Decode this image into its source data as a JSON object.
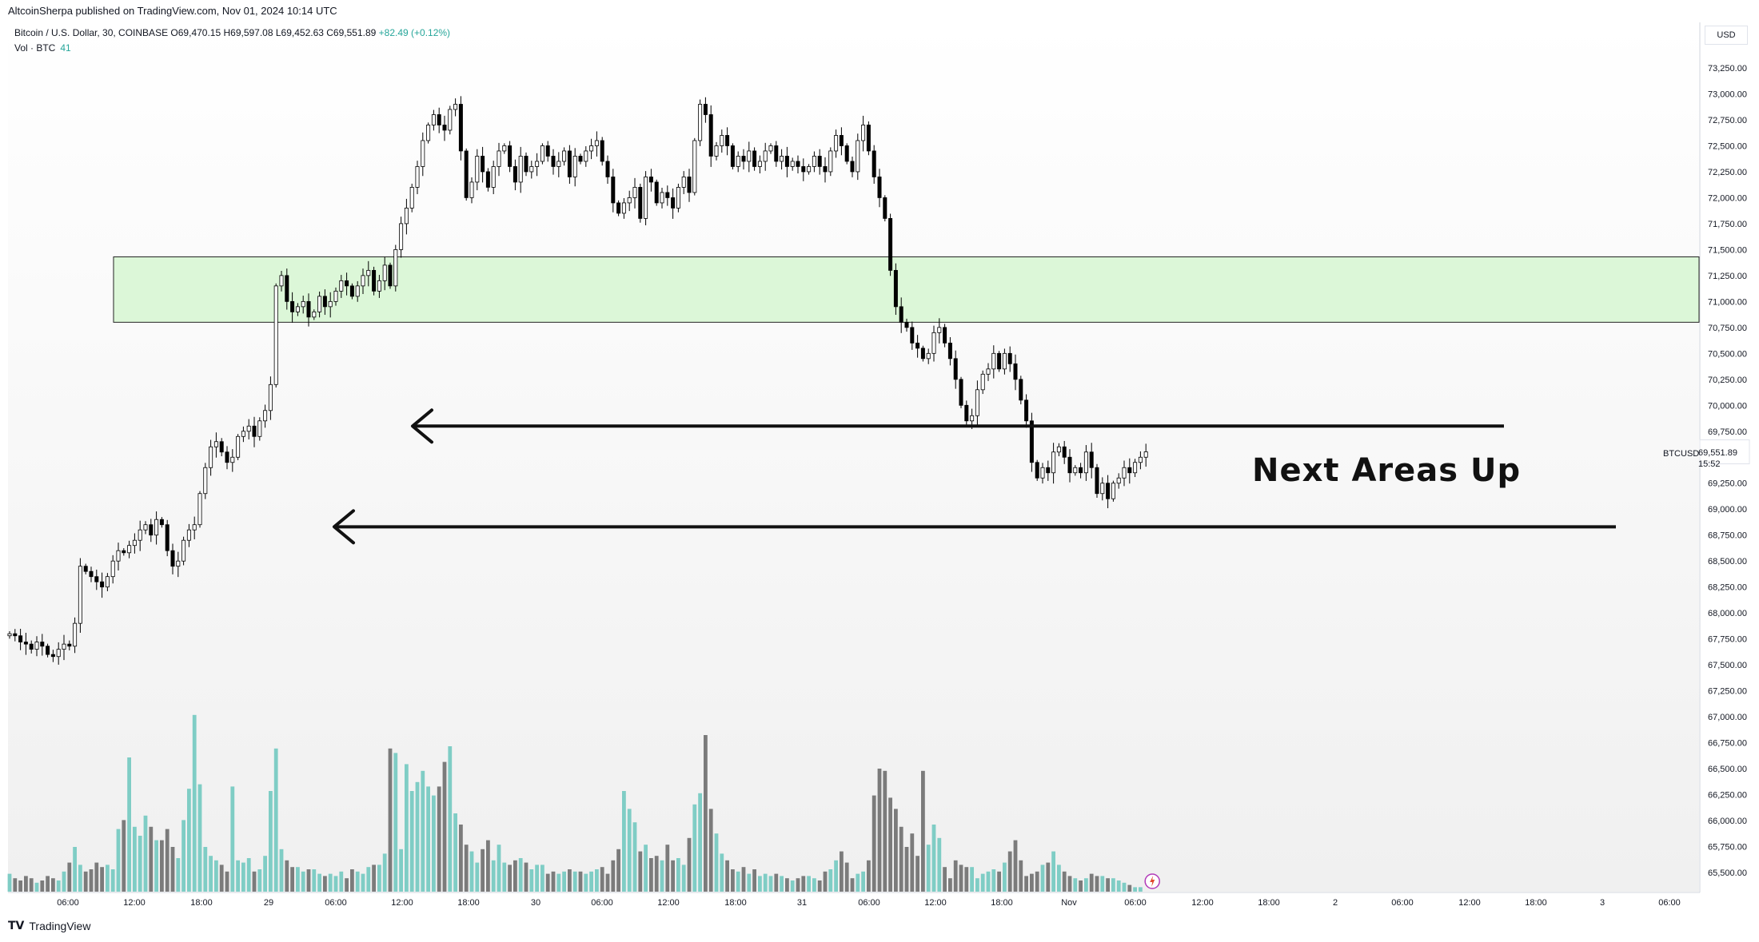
{
  "header": {
    "publish_info": "AltcoinSherpa published on TradingView.com, Nov 01, 2024 10:14 UTC",
    "symbol_desc": "Bitcoin / U.S. Dollar, 30, COINBASE",
    "ohlc": "O69,470.15  H69,597.08  L69,452.63  C69,551.89",
    "change": "+82.49 (+0.12%)",
    "vol_label": "Vol · BTC",
    "vol_value": "41"
  },
  "price_scale": {
    "currency": "USD",
    "ticker_tag": "BTCUSD",
    "last_price": "69,551.89",
    "countdown": "15:52"
  },
  "annotation": {
    "text": "Next Areas Up"
  },
  "footer": {
    "logo": "TV",
    "brand": "TradingView"
  },
  "colors": {
    "up_candle_fill": "#ffffff",
    "candle_outline": "#000000",
    "down_candle_fill": "#000000",
    "up_volume": "#7fcdc5",
    "down_volume": "#7b7b7b",
    "zone_fill": "#dcf7d8",
    "zone_border": "#222222"
  },
  "chart_data": {
    "type": "candlestick",
    "timeframe": "30m",
    "x_axis_labels": [
      "06:00",
      "12:00",
      "18:00",
      "29",
      "06:00",
      "12:00",
      "18:00",
      "30",
      "06:00",
      "12:00",
      "18:00",
      "31",
      "06:00",
      "12:00",
      "18:00",
      "Nov",
      "06:00",
      "12:00",
      "18:00",
      "2",
      "06:00",
      "12:00",
      "18:00",
      "3",
      "06:00"
    ],
    "y_axis_labels": [
      "73,250.00",
      "73,000.00",
      "72,750.00",
      "72,500.00",
      "72,250.00",
      "72,000.00",
      "71,750.00",
      "71,500.00",
      "71,250.00",
      "71,000.00",
      "70,750.00",
      "70,500.00",
      "70,250.00",
      "70,000.00",
      "69,750.00",
      "69,500.00",
      "69,250.00",
      "69,000.00",
      "68,750.00",
      "68,500.00",
      "68,250.00",
      "68,000.00",
      "67,750.00",
      "67,500.00",
      "67,250.00",
      "67,000.00",
      "66,750.00",
      "66,500.00",
      "66,250.00",
      "66,000.00",
      "65,750.00",
      "65,500.00"
    ],
    "ylim": [
      65400,
      73500
    ],
    "closes": [
      67800,
      67780,
      67720,
      67700,
      67650,
      67720,
      67680,
      67600,
      67580,
      67650,
      67700,
      67680,
      67900,
      68450,
      68400,
      68350,
      68300,
      68250,
      68350,
      68500,
      68600,
      68580,
      68650,
      68700,
      68800,
      68850,
      68750,
      68900,
      68850,
      68600,
      68450,
      68500,
      68700,
      68800,
      68850,
      69150,
      69400,
      69600,
      69650,
      69550,
      69450,
      69500,
      69700,
      69750,
      69800,
      69700,
      69850,
      69950,
      70200,
      71150,
      71250,
      71000,
      70900,
      70950,
      71000,
      70850,
      70900,
      71050,
      70950,
      71000,
      71100,
      71200,
      71150,
      71050,
      71150,
      71250,
      71300,
      71100,
      71200,
      71350,
      71150,
      71500,
      71750,
      71900,
      72100,
      72300,
      72550,
      72700,
      72800,
      72700,
      72650,
      72850,
      72900,
      72450,
      72000,
      72150,
      72400,
      72250,
      72100,
      72300,
      72450,
      72500,
      72300,
      72150,
      72400,
      72250,
      72300,
      72350,
      72500,
      72400,
      72300,
      72350,
      72450,
      72200,
      72400,
      72350,
      72450,
      72500,
      72550,
      72350,
      72200,
      71950,
      71850,
      71950,
      72000,
      72100,
      71800,
      72200,
      72150,
      71950,
      72050,
      72000,
      71900,
      72100,
      72200,
      72050,
      72550,
      72900,
      72800,
      72400,
      72500,
      72600,
      72500,
      72300,
      72400,
      72350,
      72450,
      72300,
      72350,
      72450,
      72500,
      72350,
      72400,
      72300,
      72350,
      72300,
      72250,
      72300,
      72400,
      72300,
      72250,
      72450,
      72600,
      72500,
      72350,
      72250,
      72550,
      72700,
      72450,
      72200,
      72000,
      71800,
      71300,
      70950,
      70800,
      70750,
      70600,
      70550,
      70450,
      70500,
      70700,
      70750,
      70600,
      70450,
      70250,
      70000,
      69850,
      69900,
      70150,
      70300,
      70350,
      70500,
      70350,
      70500,
      70400,
      70250,
      70050,
      69850,
      69450,
      69300,
      69400,
      69350,
      69550,
      69600,
      69500,
      69350,
      69400,
      69350,
      69550,
      69400,
      69150,
      69250,
      69100,
      69250,
      69300,
      69400,
      69350,
      69450,
      69500,
      69551.89
    ],
    "volume_relative": [
      0.08,
      0.06,
      0.05,
      0.07,
      0.06,
      0.04,
      0.05,
      0.07,
      0.06,
      0.05,
      0.09,
      0.13,
      0.2,
      0.12,
      0.09,
      0.1,
      0.13,
      0.11,
      0.12,
      0.1,
      0.28,
      0.32,
      0.6,
      0.29,
      0.25,
      0.34,
      0.29,
      0.23,
      0.23,
      0.28,
      0.2,
      0.15,
      0.32,
      0.46,
      0.79,
      0.48,
      0.2,
      0.16,
      0.14,
      0.12,
      0.09,
      0.47,
      0.14,
      0.13,
      0.15,
      0.09,
      0.1,
      0.16,
      0.45,
      0.64,
      0.19,
      0.14,
      0.11,
      0.11,
      0.09,
      0.1,
      0.1,
      0.08,
      0.07,
      0.08,
      0.07,
      0.09,
      0.06,
      0.1,
      0.09,
      0.08,
      0.11,
      0.12,
      0.12,
      0.17,
      0.64,
      0.62,
      0.19,
      0.57,
      0.45,
      0.49,
      0.54,
      0.47,
      0.43,
      0.47,
      0.58,
      0.65,
      0.35,
      0.3,
      0.21,
      0.18,
      0.13,
      0.19,
      0.23,
      0.14,
      0.21,
      0.13,
      0.12,
      0.14,
      0.15,
      0.13,
      0.1,
      0.12,
      0.12,
      0.08,
      0.09,
      0.08,
      0.09,
      0.1,
      0.09,
      0.09,
      0.08,
      0.09,
      0.1,
      0.11,
      0.08,
      0.14,
      0.19,
      0.45,
      0.37,
      0.31,
      0.18,
      0.21,
      0.15,
      0.16,
      0.14,
      0.21,
      0.14,
      0.15,
      0.12,
      0.24,
      0.39,
      0.44,
      0.7,
      0.37,
      0.26,
      0.17,
      0.14,
      0.1,
      0.09,
      0.11,
      0.08,
      0.1,
      0.07,
      0.08,
      0.07,
      0.08,
      0.07,
      0.06,
      0.05,
      0.06,
      0.07,
      0.07,
      0.06,
      0.05,
      0.09,
      0.1,
      0.14,
      0.18,
      0.13,
      0.06,
      0.08,
      0.09,
      0.14,
      0.43,
      0.55,
      0.54,
      0.42,
      0.37,
      0.29,
      0.2,
      0.26,
      0.16,
      0.54,
      0.21,
      0.3,
      0.24,
      0.11,
      0.06,
      0.14,
      0.12,
      0.11,
      0.11,
      0.06,
      0.08,
      0.09,
      0.1,
      0.09,
      0.13,
      0.18,
      0.23,
      0.14,
      0.07,
      0.08,
      0.09,
      0.12,
      0.13,
      0.18,
      0.12,
      0.09,
      0.07,
      0.06,
      0.05,
      0.06,
      0.08,
      0.07,
      0.07,
      0.06,
      0.06,
      0.05,
      0.04,
      0.03,
      0.02,
      0.02
    ],
    "zone": {
      "from": 70800,
      "to": 71430
    },
    "levels": [
      69800,
      68830
    ]
  }
}
